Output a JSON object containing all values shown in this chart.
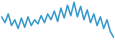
{
  "values": [
    60,
    50,
    65,
    45,
    55,
    40,
    58,
    42,
    60,
    45,
    55,
    48,
    62,
    50,
    65,
    55,
    70,
    52,
    75,
    58,
    80,
    62,
    85,
    60,
    78,
    55,
    72,
    50,
    65,
    45,
    60,
    40,
    55,
    35,
    25
  ],
  "line_color": "#3399cc",
  "bg_color": "#ffffff",
  "linewidth": 1.1
}
